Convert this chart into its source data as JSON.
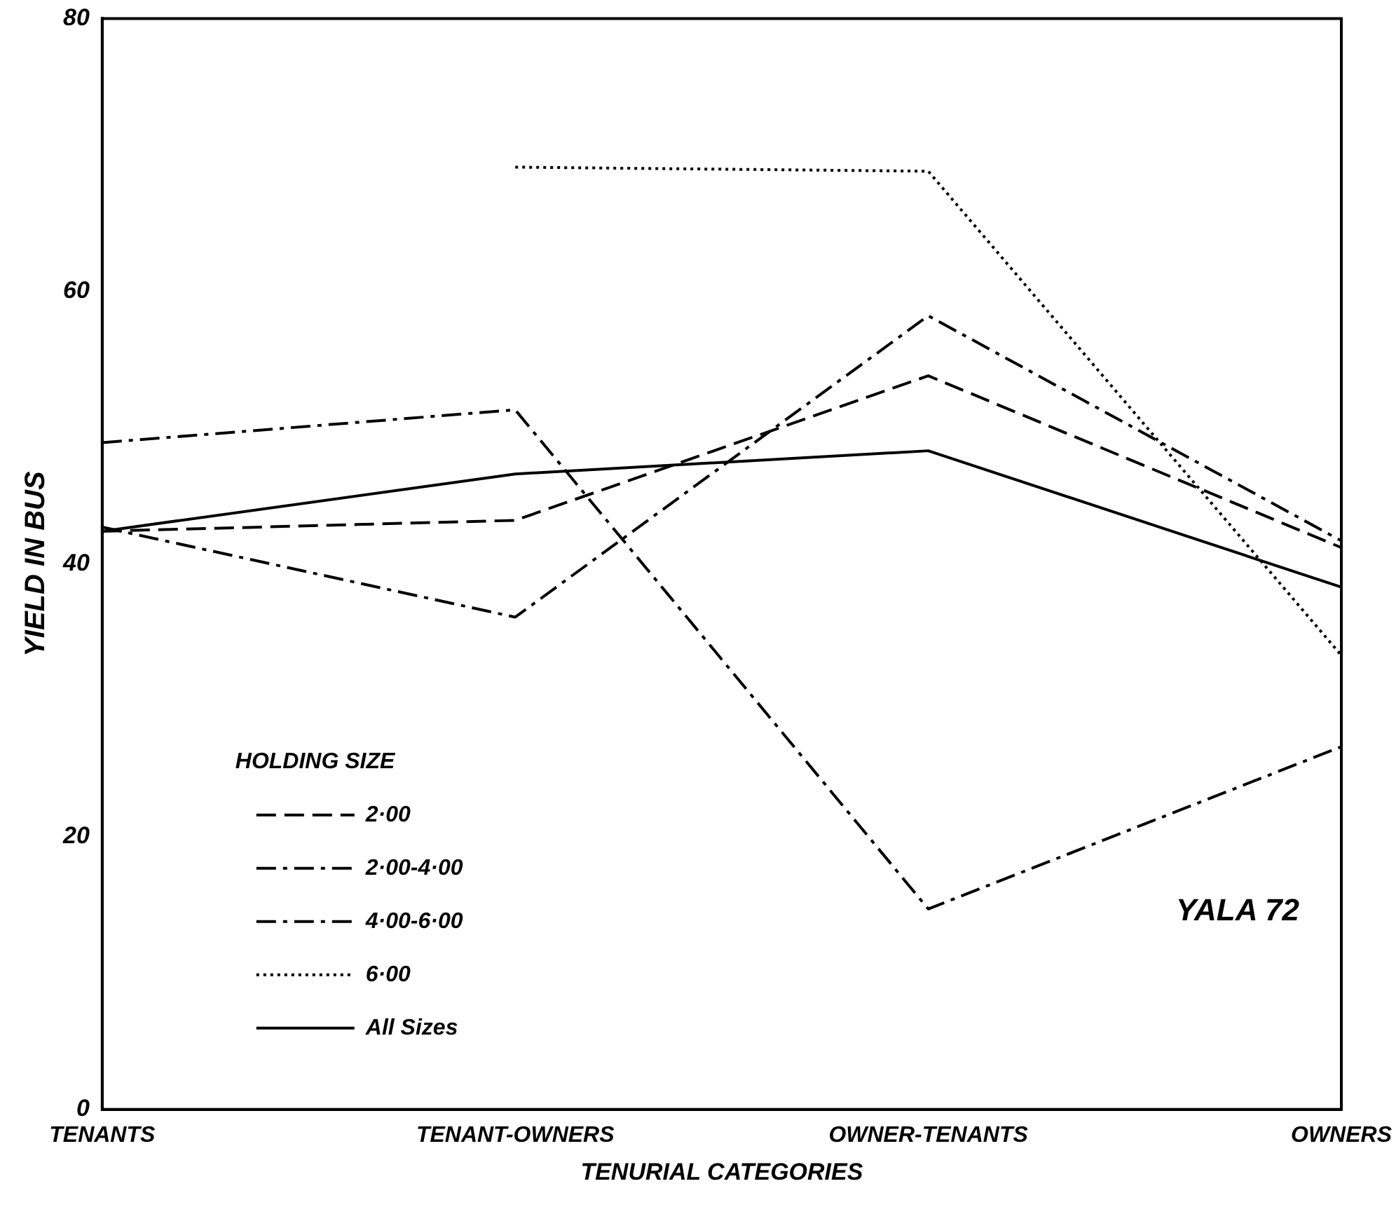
{
  "chart_data": {
    "type": "line",
    "xlabel": "TENURIAL CATEGORIES",
    "ylabel": "YIELD IN BUS",
    "legend_title": "HOLDING SIZE",
    "annotations": [
      "YALA 72"
    ],
    "categories": [
      "TENANTS",
      "TENANT-OWNERS",
      "OWNER-TENANTS",
      "OWNERS"
    ],
    "series": [
      {
        "name": "2·00",
        "color": "#000000",
        "line_style": "dashed",
        "values": [
          42.4,
          43.2,
          53.8,
          41.2
        ]
      },
      {
        "name": "2·00-4·00",
        "color": "#000000",
        "line_style": "dashdot",
        "values": [
          42.7,
          36.1,
          58.2,
          41.7
        ]
      },
      {
        "name": "4·00-6·00",
        "color": "#000000",
        "line_style": "dashdot",
        "values": [
          48.9,
          51.3,
          14.7,
          26.6
        ]
      },
      {
        "name": "6·00",
        "color": "#000000",
        "line_style": "dotted",
        "values": [
          null,
          69.1,
          68.8,
          33.3
        ]
      },
      {
        "name": "All Sizes",
        "color": "#000000",
        "line_style": "solid",
        "values": [
          42.4,
          46.6,
          48.3,
          38.3
        ]
      }
    ],
    "ylim": [
      0,
      80
    ],
    "yticks": [
      0,
      20,
      40,
      60,
      80
    ],
    "grid": false,
    "legend": "bottom left",
    "marker": "none"
  }
}
